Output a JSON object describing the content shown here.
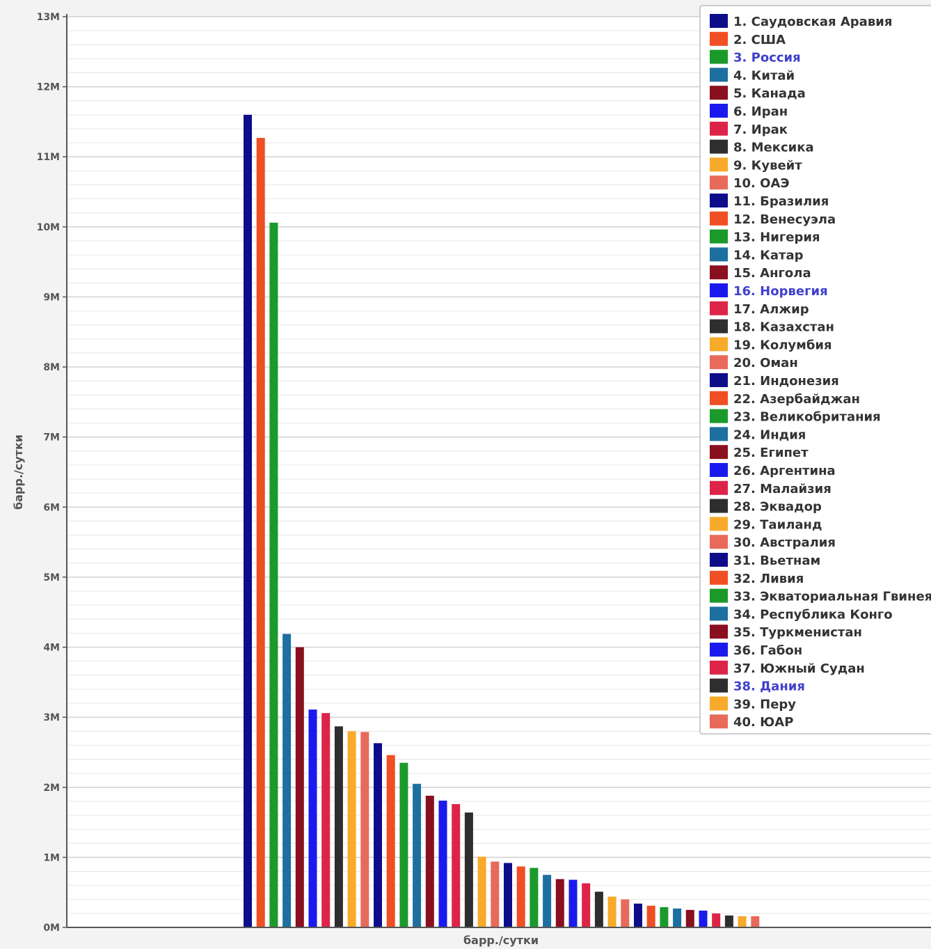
{
  "chart_data": {
    "type": "bar",
    "ylabel": "барр./сутки",
    "xlabel": "барр./сутки",
    "ylim": [
      0,
      13000000
    ],
    "y_ticks": [
      0,
      1000000,
      2000000,
      3000000,
      4000000,
      5000000,
      6000000,
      7000000,
      8000000,
      9000000,
      10000000,
      11000000,
      12000000,
      13000000
    ],
    "y_tick_labels": [
      "0M",
      "1M",
      "2M",
      "3M",
      "4M",
      "5M",
      "6M",
      "7M",
      "8M",
      "9M",
      "10M",
      "11M",
      "12M",
      "13M"
    ],
    "grid": true,
    "legend_position": "top-right",
    "series": [
      {
        "name": "1. Саудовская Аравия",
        "value": 11600000,
        "color": "#0d0d8a"
      },
      {
        "name": "2. США",
        "value": 11270000,
        "color": "#f04e23"
      },
      {
        "name": "3. Россия",
        "value": 10060000,
        "color": "#1a9a2a",
        "link": true
      },
      {
        "name": "4. Китай",
        "value": 4190000,
        "color": "#1d6fa0"
      },
      {
        "name": "5. Канада",
        "value": 4000000,
        "color": "#8a0f1f"
      },
      {
        "name": "6. Иран",
        "value": 3110000,
        "color": "#1a1aee"
      },
      {
        "name": "7. Ирак",
        "value": 3060000,
        "color": "#dd2448"
      },
      {
        "name": "8. Мексика",
        "value": 2870000,
        "color": "#2e2e2e"
      },
      {
        "name": "9. Кувейт",
        "value": 2800000,
        "color": "#f8aa2a"
      },
      {
        "name": "10. ОАЭ",
        "value": 2790000,
        "color": "#e86a5a"
      },
      {
        "name": "11. Бразилия",
        "value": 2630000,
        "color": "#0d0d8a"
      },
      {
        "name": "12. Венесуэла",
        "value": 2460000,
        "color": "#f04e23"
      },
      {
        "name": "13. Нигерия",
        "value": 2350000,
        "color": "#1a9a2a"
      },
      {
        "name": "14. Катар",
        "value": 2050000,
        "color": "#1d6fa0"
      },
      {
        "name": "15. Ангола",
        "value": 1880000,
        "color": "#8a0f1f"
      },
      {
        "name": "16. Норвегия",
        "value": 1810000,
        "color": "#1a1aee",
        "link": true
      },
      {
        "name": "17. Алжир",
        "value": 1760000,
        "color": "#dd2448"
      },
      {
        "name": "18. Казахстан",
        "value": 1640000,
        "color": "#2e2e2e"
      },
      {
        "name": "19. Колумбия",
        "value": 1010000,
        "color": "#f8aa2a"
      },
      {
        "name": "20. Оман",
        "value": 940000,
        "color": "#e86a5a"
      },
      {
        "name": "21. Индонезия",
        "value": 920000,
        "color": "#0d0d8a"
      },
      {
        "name": "22. Азербайджан",
        "value": 870000,
        "color": "#f04e23"
      },
      {
        "name": "23. Великобритания",
        "value": 850000,
        "color": "#1a9a2a"
      },
      {
        "name": "24. Индия",
        "value": 750000,
        "color": "#1d6fa0"
      },
      {
        "name": "25. Египет",
        "value": 690000,
        "color": "#8a0f1f"
      },
      {
        "name": "26. Аргентина",
        "value": 680000,
        "color": "#1a1aee"
      },
      {
        "name": "27. Малайзия",
        "value": 630000,
        "color": "#dd2448"
      },
      {
        "name": "28. Эквадор",
        "value": 510000,
        "color": "#2e2e2e"
      },
      {
        "name": "29. Таиланд",
        "value": 440000,
        "color": "#f8aa2a"
      },
      {
        "name": "30. Австралия",
        "value": 400000,
        "color": "#e86a5a"
      },
      {
        "name": "31. Вьетнам",
        "value": 340000,
        "color": "#0d0d8a"
      },
      {
        "name": "32. Ливия",
        "value": 310000,
        "color": "#f04e23"
      },
      {
        "name": "33. Экваториальная Гвинея",
        "value": 290000,
        "color": "#1a9a2a"
      },
      {
        "name": "34. Республика Конго",
        "value": 270000,
        "color": "#1d6fa0"
      },
      {
        "name": "35. Туркменистан",
        "value": 250000,
        "color": "#8a0f1f"
      },
      {
        "name": "36. Габон",
        "value": 240000,
        "color": "#1a1aee"
      },
      {
        "name": "37. Южный Судан",
        "value": 200000,
        "color": "#dd2448"
      },
      {
        "name": "38. Дания",
        "value": 170000,
        "color": "#2e2e2e",
        "link": true
      },
      {
        "name": "39. Перу",
        "value": 160000,
        "color": "#f8aa2a"
      },
      {
        "name": "40. ЮАР",
        "value": 160000,
        "color": "#e86a5a"
      }
    ]
  }
}
